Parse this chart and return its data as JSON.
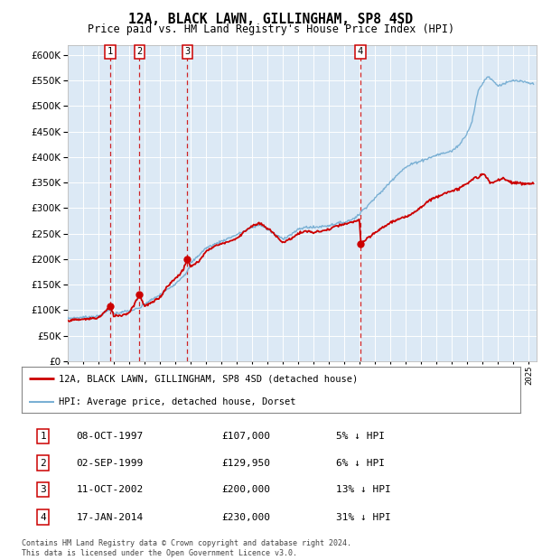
{
  "title": "12A, BLACK LAWN, GILLINGHAM, SP8 4SD",
  "subtitle": "Price paid vs. HM Land Registry's House Price Index (HPI)",
  "background_color": "#dce9f5",
  "ylim": [
    0,
    620000
  ],
  "yticks": [
    0,
    50000,
    100000,
    150000,
    200000,
    250000,
    300000,
    350000,
    400000,
    450000,
    500000,
    550000,
    600000
  ],
  "sales": [
    {
      "label": "1",
      "date": "1997-10-08",
      "price": 107000,
      "x": 1997.77
    },
    {
      "label": "2",
      "date": "1999-09-02",
      "price": 129950,
      "x": 1999.67
    },
    {
      "label": "3",
      "date": "2002-10-11",
      "price": 200000,
      "x": 2002.78
    },
    {
      "label": "4",
      "date": "2014-01-17",
      "price": 230000,
      "x": 2014.04
    }
  ],
  "hpi_color": "#7ab0d4",
  "prop_color": "#cc0000",
  "legend_line1": "12A, BLACK LAWN, GILLINGHAM, SP8 4SD (detached house)",
  "legend_line2": "HPI: Average price, detached house, Dorset",
  "table_rows": [
    [
      "1",
      "08-OCT-1997",
      "£107,000",
      "5% ↓ HPI"
    ],
    [
      "2",
      "02-SEP-1999",
      "£129,950",
      "6% ↓ HPI"
    ],
    [
      "3",
      "11-OCT-2002",
      "£200,000",
      "13% ↓ HPI"
    ],
    [
      "4",
      "17-JAN-2014",
      "£230,000",
      "31% ↓ HPI"
    ]
  ],
  "footer": "Contains HM Land Registry data © Crown copyright and database right 2024.\nThis data is licensed under the Open Government Licence v3.0.",
  "xmin": 1995.0,
  "xmax": 2025.5,
  "hpi_knots": [
    [
      1995.0,
      84000
    ],
    [
      1996.0,
      86000
    ],
    [
      1997.0,
      88000
    ],
    [
      1997.77,
      101500
    ],
    [
      1998.0,
      93000
    ],
    [
      1999.0,
      99000
    ],
    [
      1999.67,
      103500
    ],
    [
      2000.0,
      112000
    ],
    [
      2001.0,
      130000
    ],
    [
      2002.0,
      152000
    ],
    [
      2002.78,
      175000
    ],
    [
      2003.0,
      192000
    ],
    [
      2004.0,
      222000
    ],
    [
      2005.0,
      235000
    ],
    [
      2006.0,
      248000
    ],
    [
      2007.0,
      262000
    ],
    [
      2007.5,
      268000
    ],
    [
      2008.0,
      258000
    ],
    [
      2008.5,
      248000
    ],
    [
      2009.0,
      240000
    ],
    [
      2009.5,
      248000
    ],
    [
      2010.0,
      258000
    ],
    [
      2010.5,
      263000
    ],
    [
      2011.0,
      262000
    ],
    [
      2011.5,
      264000
    ],
    [
      2012.0,
      266000
    ],
    [
      2012.5,
      270000
    ],
    [
      2013.0,
      272000
    ],
    [
      2013.5,
      278000
    ],
    [
      2014.0,
      288000
    ],
    [
      2014.04,
      291500
    ],
    [
      2014.5,
      305000
    ],
    [
      2015.0,
      320000
    ],
    [
      2015.5,
      335000
    ],
    [
      2016.0,
      352000
    ],
    [
      2016.5,
      368000
    ],
    [
      2017.0,
      380000
    ],
    [
      2017.5,
      388000
    ],
    [
      2018.0,
      393000
    ],
    [
      2018.5,
      398000
    ],
    [
      2019.0,
      404000
    ],
    [
      2019.5,
      408000
    ],
    [
      2020.0,
      412000
    ],
    [
      2020.5,
      425000
    ],
    [
      2021.0,
      448000
    ],
    [
      2021.3,
      470000
    ],
    [
      2021.5,
      500000
    ],
    [
      2021.7,
      530000
    ],
    [
      2022.0,
      545000
    ],
    [
      2022.3,
      558000
    ],
    [
      2022.5,
      555000
    ],
    [
      2022.8,
      545000
    ],
    [
      2023.0,
      540000
    ],
    [
      2023.5,
      545000
    ],
    [
      2024.0,
      550000
    ],
    [
      2024.5,
      548000
    ],
    [
      2025.0,
      545000
    ],
    [
      2025.3,
      543000
    ]
  ],
  "prop_knots": [
    [
      1995.0,
      80000
    ],
    [
      1996.0,
      82000
    ],
    [
      1997.0,
      85000
    ],
    [
      1997.77,
      107000
    ],
    [
      1998.0,
      89000
    ],
    [
      1998.5,
      90000
    ],
    [
      1999.0,
      95000
    ],
    [
      1999.67,
      129950
    ],
    [
      2000.0,
      108000
    ],
    [
      2000.5,
      115000
    ],
    [
      2001.0,
      125000
    ],
    [
      2001.5,
      148000
    ],
    [
      2002.0,
      162000
    ],
    [
      2002.5,
      178000
    ],
    [
      2002.78,
      200000
    ],
    [
      2003.0,
      185000
    ],
    [
      2003.5,
      195000
    ],
    [
      2004.0,
      215000
    ],
    [
      2004.5,
      225000
    ],
    [
      2005.0,
      230000
    ],
    [
      2005.5,
      235000
    ],
    [
      2006.0,
      240000
    ],
    [
      2006.5,
      255000
    ],
    [
      2007.0,
      265000
    ],
    [
      2007.5,
      270000
    ],
    [
      2008.0,
      260000
    ],
    [
      2008.5,
      248000
    ],
    [
      2009.0,
      232000
    ],
    [
      2009.5,
      240000
    ],
    [
      2010.0,
      250000
    ],
    [
      2010.5,
      255000
    ],
    [
      2011.0,
      252000
    ],
    [
      2011.5,
      255000
    ],
    [
      2012.0,
      258000
    ],
    [
      2012.5,
      265000
    ],
    [
      2013.0,
      268000
    ],
    [
      2013.5,
      272000
    ],
    [
      2014.0,
      278000
    ],
    [
      2014.04,
      230000
    ],
    [
      2014.5,
      240000
    ],
    [
      2015.0,
      252000
    ],
    [
      2015.5,
      262000
    ],
    [
      2016.0,
      272000
    ],
    [
      2016.5,
      278000
    ],
    [
      2017.0,
      282000
    ],
    [
      2017.5,
      292000
    ],
    [
      2018.0,
      302000
    ],
    [
      2018.5,
      315000
    ],
    [
      2019.0,
      322000
    ],
    [
      2019.5,
      330000
    ],
    [
      2020.0,
      332000
    ],
    [
      2020.5,
      340000
    ],
    [
      2021.0,
      348000
    ],
    [
      2021.3,
      355000
    ],
    [
      2021.5,
      362000
    ],
    [
      2021.7,
      358000
    ],
    [
      2022.0,
      368000
    ],
    [
      2022.3,
      358000
    ],
    [
      2022.5,
      348000
    ],
    [
      2022.8,
      352000
    ],
    [
      2023.0,
      355000
    ],
    [
      2023.3,
      360000
    ],
    [
      2023.5,
      355000
    ],
    [
      2024.0,
      350000
    ],
    [
      2024.5,
      348000
    ],
    [
      2025.0,
      348000
    ],
    [
      2025.3,
      348000
    ]
  ]
}
